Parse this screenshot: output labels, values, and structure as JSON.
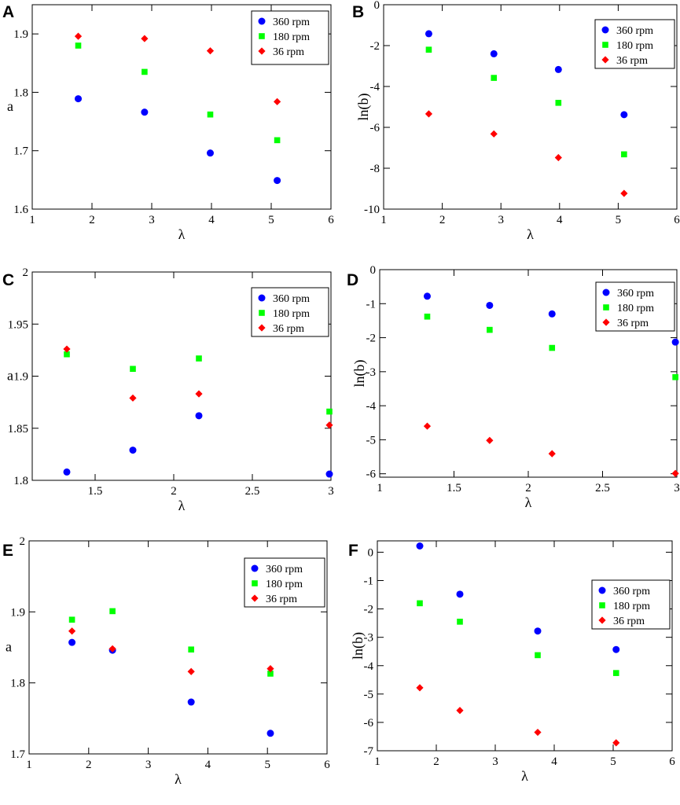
{
  "chart_data": [
    {
      "panel": "A",
      "type": "scatter",
      "xlabel": "λ",
      "ylabel": "a",
      "xlim": [
        1,
        6
      ],
      "ylim": [
        1.6,
        1.95
      ],
      "xticks": [
        1,
        2,
        3,
        4,
        5,
        6
      ],
      "xtick_labels": [
        "1",
        "2",
        "3",
        "4",
        "5",
        "6"
      ],
      "yticks": [
        1.6,
        1.7,
        1.8,
        1.9
      ],
      "ytick_labels": [
        "1.6",
        "1.7",
        "1.8",
        "1.9"
      ],
      "legend_position": "top-right",
      "series": [
        {
          "name": "360 rpm",
          "marker": "circle",
          "color": "#0000ff",
          "x": [
            1.77,
            2.88,
            3.98,
            5.1
          ],
          "y": [
            1.789,
            1.766,
            1.696,
            1.649
          ]
        },
        {
          "name": "180 rpm",
          "marker": "square",
          "color": "#00ff00",
          "x": [
            1.77,
            2.88,
            3.98,
            5.1
          ],
          "y": [
            1.88,
            1.835,
            1.762,
            1.718
          ]
        },
        {
          "name": "36 rpm",
          "marker": "diamond",
          "color": "#ff0000",
          "x": [
            1.77,
            2.88,
            3.98,
            5.1
          ],
          "y": [
            1.896,
            1.892,
            1.871,
            1.784
          ]
        }
      ]
    },
    {
      "panel": "B",
      "type": "scatter",
      "xlabel": "λ",
      "ylabel": "ln(b)",
      "xlim": [
        1,
        6
      ],
      "ylim": [
        -10,
        0
      ],
      "xticks": [
        1,
        2,
        3,
        4,
        5,
        6
      ],
      "xtick_labels": [
        "1",
        "2",
        "3",
        "4",
        "5",
        "6"
      ],
      "yticks": [
        -10,
        -8,
        -6,
        -4,
        -2,
        0
      ],
      "ytick_labels": [
        "-10",
        "-8",
        "-6",
        "-4",
        "-2",
        "0"
      ],
      "legend_position": "top-right",
      "series": [
        {
          "name": "360 rpm",
          "marker": "circle",
          "color": "#0000ff",
          "x": [
            1.77,
            2.88,
            3.98,
            5.1
          ],
          "y": [
            -1.42,
            -2.4,
            -3.17,
            -5.38
          ]
        },
        {
          "name": "180 rpm",
          "marker": "square",
          "color": "#00ff00",
          "x": [
            1.77,
            2.88,
            3.98,
            5.1
          ],
          "y": [
            -2.2,
            -3.58,
            -4.8,
            -7.32
          ]
        },
        {
          "name": "36 rpm",
          "marker": "diamond",
          "color": "#ff0000",
          "x": [
            1.77,
            2.88,
            3.98,
            5.1
          ],
          "y": [
            -5.34,
            -6.32,
            -7.48,
            -9.23
          ]
        }
      ]
    },
    {
      "panel": "C",
      "type": "scatter",
      "xlabel": "λ",
      "ylabel": "a",
      "xlim": [
        1.1,
        3.0
      ],
      "ylim": [
        1.8,
        2.0
      ],
      "xticks": [
        1.5,
        2,
        2.5,
        3
      ],
      "xtick_labels": [
        "1.5",
        "2",
        "2.5",
        "3"
      ],
      "yticks": [
        1.8,
        1.85,
        1.9,
        1.95,
        2.0
      ],
      "ytick_labels": [
        "1.8",
        "1.85",
        "1.9",
        "1.95",
        "2"
      ],
      "legend_position": "top-right",
      "series": [
        {
          "name": "360 rpm",
          "marker": "circle",
          "color": "#0000ff",
          "x": [
            1.32,
            1.74,
            2.16,
            2.99
          ],
          "y": [
            1.808,
            1.829,
            1.862,
            1.806
          ]
        },
        {
          "name": "180 rpm",
          "marker": "square",
          "color": "#00ff00",
          "x": [
            1.32,
            1.74,
            2.16,
            2.99
          ],
          "y": [
            1.921,
            1.907,
            1.917,
            1.866
          ]
        },
        {
          "name": "36 rpm",
          "marker": "diamond",
          "color": "#ff0000",
          "x": [
            1.32,
            1.74,
            2.16,
            2.99
          ],
          "y": [
            1.926,
            1.879,
            1.883,
            1.853
          ]
        }
      ]
    },
    {
      "panel": "D",
      "type": "scatter",
      "xlabel": "λ",
      "ylabel": "ln(b)",
      "xlim": [
        1,
        3
      ],
      "ylim": [
        -6.1,
        0
      ],
      "xticks": [
        1,
        1.5,
        2,
        2.5,
        3
      ],
      "xtick_labels": [
        "1",
        "1.5",
        "2",
        "2.5",
        "3"
      ],
      "yticks": [
        -6,
        -5,
        -4,
        -3,
        -2,
        -1,
        0
      ],
      "ytick_labels": [
        "-6",
        "-5",
        "-4",
        "-3",
        "-2",
        "-1",
        "0"
      ],
      "legend_position": "top-right",
      "series": [
        {
          "name": "360 rpm",
          "marker": "circle",
          "color": "#0000ff",
          "x": [
            1.32,
            1.74,
            2.16,
            2.99
          ],
          "y": [
            -0.78,
            -1.05,
            -1.3,
            -2.13
          ]
        },
        {
          "name": "180 rpm",
          "marker": "square",
          "color": "#00ff00",
          "x": [
            1.32,
            1.74,
            2.16,
            2.99
          ],
          "y": [
            -1.38,
            -1.77,
            -2.3,
            -3.16
          ]
        },
        {
          "name": "36 rpm",
          "marker": "diamond",
          "color": "#ff0000",
          "x": [
            1.32,
            1.74,
            2.16,
            2.99
          ],
          "y": [
            -4.6,
            -5.02,
            -5.41,
            -5.99
          ]
        }
      ]
    },
    {
      "panel": "E",
      "type": "scatter",
      "xlabel": "λ",
      "ylabel": "a",
      "xlim": [
        1,
        6
      ],
      "ylim": [
        1.7,
        2.0
      ],
      "xticks": [
        1,
        2,
        3,
        4,
        5,
        6
      ],
      "xtick_labels": [
        "1",
        "2",
        "3",
        "4",
        "5",
        "6"
      ],
      "yticks": [
        1.7,
        1.8,
        1.9,
        2.0
      ],
      "ytick_labels": [
        "1.7",
        "1.8",
        "1.9",
        "2"
      ],
      "legend_position": "top-right",
      "series": [
        {
          "name": "360 rpm",
          "marker": "circle",
          "color": "#0000ff",
          "x": [
            1.72,
            2.4,
            3.72,
            5.05
          ],
          "y": [
            1.857,
            1.846,
            1.773,
            1.729
          ]
        },
        {
          "name": "180 rpm",
          "marker": "square",
          "color": "#00ff00",
          "x": [
            1.72,
            2.4,
            3.72,
            5.05
          ],
          "y": [
            1.889,
            1.901,
            1.847,
            1.813
          ]
        },
        {
          "name": "36 rpm",
          "marker": "diamond",
          "color": "#ff0000",
          "x": [
            1.72,
            2.4,
            3.72,
            5.05
          ],
          "y": [
            1.873,
            1.848,
            1.816,
            1.82
          ]
        }
      ]
    },
    {
      "panel": "F",
      "type": "scatter",
      "xlabel": "λ",
      "ylabel": "ln(b)",
      "xlim": [
        1,
        6
      ],
      "ylim": [
        -7,
        0.4
      ],
      "xticks": [
        1,
        2,
        3,
        4,
        5,
        6
      ],
      "xtick_labels": [
        "1",
        "2",
        "3",
        "4",
        "5",
        "6"
      ],
      "yticks": [
        -7,
        -6,
        -5,
        -4,
        -3,
        -2,
        -1,
        0
      ],
      "ytick_labels": [
        "-7",
        "-6",
        "-5",
        "-4",
        "-3",
        "-2",
        "-1",
        "0"
      ],
      "legend_position": "top-right",
      "series": [
        {
          "name": "360 rpm",
          "marker": "circle",
          "color": "#0000ff",
          "x": [
            1.72,
            2.4,
            3.72,
            5.05
          ],
          "y": [
            0.22,
            -1.48,
            -2.78,
            -3.43
          ]
        },
        {
          "name": "180 rpm",
          "marker": "square",
          "color": "#00ff00",
          "x": [
            1.72,
            2.4,
            3.72,
            5.05
          ],
          "y": [
            -1.8,
            -2.45,
            -3.63,
            -4.26
          ]
        },
        {
          "name": "36 rpm",
          "marker": "diamond",
          "color": "#ff0000",
          "x": [
            1.72,
            2.4,
            3.72,
            5.05
          ],
          "y": [
            -4.78,
            -5.58,
            -6.35,
            -6.72
          ]
        }
      ]
    }
  ]
}
